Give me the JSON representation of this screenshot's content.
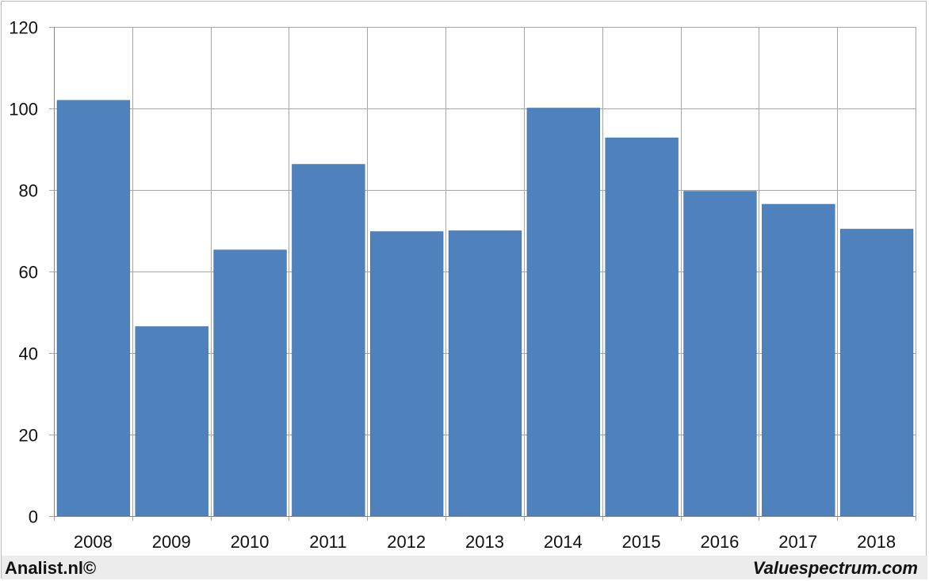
{
  "chart_data": {
    "type": "bar",
    "categories": [
      "2008",
      "2009",
      "2010",
      "2011",
      "2012",
      "2013",
      "2014",
      "2015",
      "2016",
      "2017",
      "2018"
    ],
    "values": [
      102,
      46.5,
      65.3,
      86.3,
      69.8,
      70.0,
      100.1,
      92.8,
      79.7,
      76.5,
      70.4
    ],
    "title": "",
    "xlabel": "",
    "ylabel": "",
    "ylim": [
      0,
      120
    ],
    "yticks": [
      0,
      20,
      40,
      60,
      80,
      100,
      120
    ],
    "grid": true,
    "bar_color": "#4f81bd",
    "grid_color": "#a6a6a6"
  },
  "footer": {
    "left": "Analist.nl©",
    "right": "Valuespectrum.com"
  }
}
